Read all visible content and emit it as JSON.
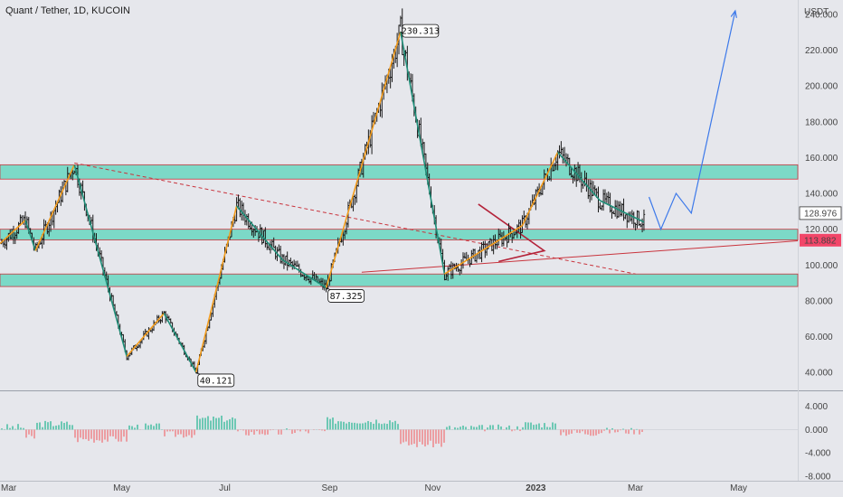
{
  "header": {
    "title": "Quant / Tether, 1D, KUCOIN"
  },
  "price_axis": {
    "unit": "USDT",
    "ticks": [
      "240.000",
      "220.000",
      "200.000",
      "180.000",
      "160.000",
      "140.000",
      "120.000",
      "100.000",
      "80.000",
      "60.000",
      "40.000"
    ],
    "current_price": "128.976",
    "marker_price": "113.882"
  },
  "time_axis": {
    "ticks": [
      "Mar",
      "May",
      "Jul",
      "Sep",
      "Nov",
      "2023",
      "Mar",
      "May"
    ]
  },
  "oscillator": {
    "ticks": [
      "4.000",
      "0.000",
      "-4.000",
      "-8.000"
    ]
  },
  "callouts": {
    "high": "230.313",
    "mid_low": "87.325",
    "low": "40.121"
  },
  "colors": {
    "zone_fill": "#69d6c1",
    "zone_border": "#c9343d",
    "up_leg": "#f29b1b",
    "down_leg": "#1e8e78",
    "projection": "#3c79ea",
    "triangle": "#b4233a",
    "hist_pos": "#4fc1a6",
    "hist_neg": "#ee8b8f",
    "marker_bg": "#f24669"
  },
  "chart_data": {
    "type": "candlestick",
    "symbol": "Quant / Tether",
    "timeframe": "1D",
    "exchange": "KUCOIN",
    "ylim": [
      30,
      244
    ],
    "zigzag_points": [
      {
        "date": "2022-02-18",
        "price": 112
      },
      {
        "date": "2022-03-05",
        "price": 125
      },
      {
        "date": "2022-03-11",
        "price": 108
      },
      {
        "date": "2022-04-03",
        "price": 156
      },
      {
        "date": "2022-05-04",
        "price": 49
      },
      {
        "date": "2022-05-26",
        "price": 73
      },
      {
        "date": "2022-06-14",
        "price": 40.121
      },
      {
        "date": "2022-07-08",
        "price": 133
      },
      {
        "date": "2022-08-04",
        "price": 103
      },
      {
        "date": "2022-08-30",
        "price": 87.325
      },
      {
        "date": "2022-10-13",
        "price": 230.313
      },
      {
        "date": "2022-11-08",
        "price": 95
      },
      {
        "date": "2022-12-24",
        "price": 122
      },
      {
        "date": "2023-01-14",
        "price": 163
      },
      {
        "date": "2023-02-08",
        "price": 136
      },
      {
        "date": "2023-03-06",
        "price": 124
      }
    ],
    "last_price": 128.976,
    "marked_price": 113.882,
    "zones": [
      {
        "from": 148,
        "to": 156
      },
      {
        "from": 114,
        "to": 120
      },
      {
        "from": 88,
        "to": 95
      }
    ],
    "projection": [
      {
        "date": "2023-03-09",
        "price": 138
      },
      {
        "date": "2023-03-16",
        "price": 120
      },
      {
        "date": "2023-03-25",
        "price": 140
      },
      {
        "date": "2023-04-03",
        "price": 129
      },
      {
        "date": "2023-04-29",
        "price": 242
      }
    ],
    "oscillator_range": [
      -8,
      5.5
    ]
  }
}
